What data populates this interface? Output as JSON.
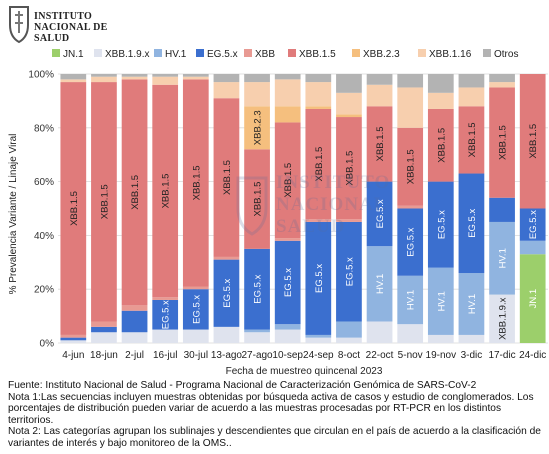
{
  "logo": {
    "lines": [
      "INSTITUTO",
      "NACIONAL DE",
      "SALUD"
    ]
  },
  "watermark": {
    "lines": [
      "INSTITUTO",
      "NACIONAL",
      "SALUD"
    ]
  },
  "colors": {
    "JN.1": "#9ccf6b",
    "XBB.1.9.x": "#dfe3ee",
    "HV.1": "#90b4e0",
    "EG.5.x": "#3b6fcf",
    "XBB": "#e89a93",
    "XBB.1.5": "#e07b7b",
    "XBB.2.3": "#f5bf7e",
    "XBB.1.16": "#f7cfae",
    "Otros": "#b3b3b3"
  },
  "chart_data": {
    "type": "bar",
    "stacked": true,
    "xlabel": "Fecha de muestreo quincenal 2023",
    "ylabel": "% Prevalencia Variante / Linaje Viral",
    "ylim": [
      0,
      100
    ],
    "yticks": [
      "0%",
      "20%",
      "40%",
      "60%",
      "80%",
      "100%"
    ],
    "legend_position": "top",
    "categories": [
      "4-jun",
      "18-jun",
      "2-jul",
      "16-jul",
      "30-jul",
      "13-ago",
      "27-ago",
      "10-sep",
      "24-sep",
      "8-oct",
      "22-oct",
      "5-nov",
      "19-nov",
      "3-dic",
      "17-dic",
      "24-dic"
    ],
    "series": [
      {
        "name": "JN.1",
        "values": [
          0,
          0,
          0,
          0,
          0,
          0,
          0,
          0,
          0,
          0,
          0,
          0,
          0,
          0,
          0,
          33
        ]
      },
      {
        "name": "XBB.1.9.x",
        "values": [
          1,
          4,
          4,
          5,
          5,
          6,
          4,
          5,
          2,
          2,
          8,
          7,
          3,
          3,
          18,
          0
        ]
      },
      {
        "name": "HV.1",
        "values": [
          0,
          0,
          0,
          0,
          0,
          0,
          1,
          2,
          1,
          6,
          28,
          18,
          25,
          23,
          27,
          5
        ]
      },
      {
        "name": "EG.5.x",
        "values": [
          1,
          2,
          8,
          11,
          15,
          25,
          30,
          31,
          42,
          37,
          24,
          25,
          32,
          37,
          9,
          12
        ]
      },
      {
        "name": "XBB",
        "values": [
          1,
          2,
          2,
          1,
          1,
          1,
          0,
          1,
          1,
          1,
          0,
          1,
          0,
          0,
          0,
          0
        ]
      },
      {
        "name": "XBB.1.5",
        "values": [
          94,
          89,
          84,
          79,
          77,
          59,
          37,
          43,
          41,
          38,
          28,
          29,
          27,
          25,
          41,
          50
        ]
      },
      {
        "name": "XBB.2.3",
        "values": [
          0,
          0,
          0,
          0,
          0,
          0,
          16,
          6,
          1,
          1,
          0,
          0,
          0,
          0,
          0,
          0
        ]
      },
      {
        "name": "XBB.1.16",
        "values": [
          1,
          2,
          1,
          3,
          1,
          6,
          9,
          10,
          9,
          8,
          8,
          15,
          6,
          7,
          2,
          0
        ]
      },
      {
        "name": "Otros",
        "values": [
          2,
          1,
          1,
          1,
          1,
          3,
          3,
          2,
          3,
          7,
          4,
          5,
          7,
          5,
          3,
          0
        ]
      }
    ],
    "bar_labels": [
      {
        "col": 0,
        "series": "XBB.1.5"
      },
      {
        "col": 1,
        "series": "XBB.1.5"
      },
      {
        "col": 2,
        "series": "XBB.1.5"
      },
      {
        "col": 3,
        "series": "XBB.1.5"
      },
      {
        "col": 3,
        "series": "EG.5.x",
        "text": "EG.5.x"
      },
      {
        "col": 4,
        "series": "XBB.1.5"
      },
      {
        "col": 4,
        "series": "EG.5.x",
        "text": "EG.5.x"
      },
      {
        "col": 5,
        "series": "XBB.1.5"
      },
      {
        "col": 5,
        "series": "EG.5.x",
        "text": "EG.5.x"
      },
      {
        "col": 6,
        "series": "XBB.2.3"
      },
      {
        "col": 6,
        "series": "XBB.1.5"
      },
      {
        "col": 6,
        "series": "EG.5.x",
        "text": "EG.5.x"
      },
      {
        "col": 7,
        "series": "XBB.1.5"
      },
      {
        "col": 7,
        "series": "EG.5.x",
        "text": "EG.5.x"
      },
      {
        "col": 8,
        "series": "XBB.1.5"
      },
      {
        "col": 8,
        "series": "EG.5.x",
        "text": "EG.5.x"
      },
      {
        "col": 9,
        "series": "XBB.1.5"
      },
      {
        "col": 9,
        "series": "EG.5.x",
        "text": "EG.5.x"
      },
      {
        "col": 10,
        "series": "XBB.1.5"
      },
      {
        "col": 10,
        "series": "EG.5.x",
        "text": "EG.5.x"
      },
      {
        "col": 10,
        "series": "HV.1"
      },
      {
        "col": 11,
        "series": "XBB.1.5"
      },
      {
        "col": 11,
        "series": "EG.5.x",
        "text": "EG.5.x"
      },
      {
        "col": 11,
        "series": "HV.1"
      },
      {
        "col": 12,
        "series": "XBB.1.5"
      },
      {
        "col": 12,
        "series": "EG.5.x",
        "text": "EG.5.x"
      },
      {
        "col": 12,
        "series": "HV.1"
      },
      {
        "col": 13,
        "series": "XBB.1.5"
      },
      {
        "col": 13,
        "series": "EG.5.x",
        "text": "EG.5.x"
      },
      {
        "col": 13,
        "series": "HV.1"
      },
      {
        "col": 14,
        "series": "XBB.1.5"
      },
      {
        "col": 14,
        "series": "HV.1"
      },
      {
        "col": 14,
        "series": "XBB.1.9.x"
      },
      {
        "col": 15,
        "series": "XBB.1.5"
      },
      {
        "col": 15,
        "series": "EG.5.x",
        "text": "EG.5.x"
      },
      {
        "col": 15,
        "series": "JN.1"
      }
    ]
  },
  "notes": {
    "source": "Fuente: Instituto Nacional de Salud - Programa Nacional de Caracterización Genómica de SARS-CoV-2",
    "note1": "Nota 1:Las secuencias incluyen muestras obtenidas por búsqueda activa de casos y estudio de conglomerados. Los porcentajes de distribución pueden variar de acuerdo a las muestras procesadas por RT-PCR en los distintos territorios.",
    "note2": "Nota 2: Las categorías agrupan los sublinajes y descendientes que circulan en el país de acuerdo a la clasificación de variantes de interés y bajo monitoreo de la OMS.."
  }
}
